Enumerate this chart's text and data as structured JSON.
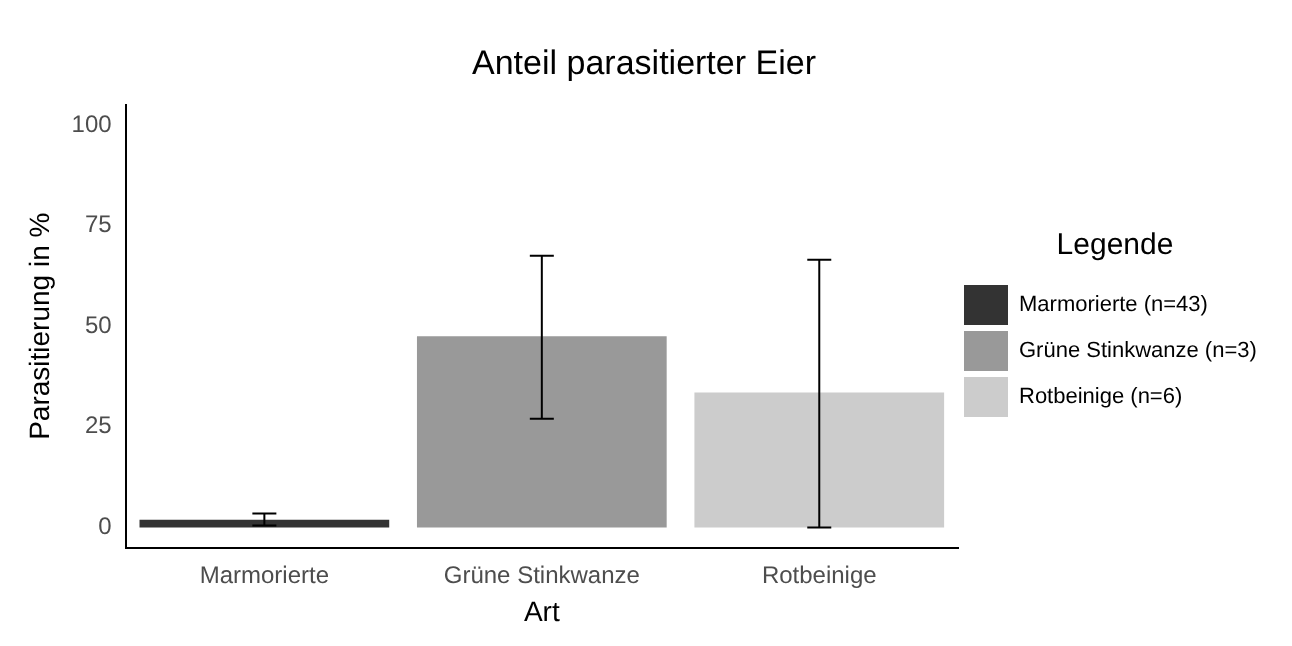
{
  "chart_data": {
    "type": "bar",
    "title": "Anteil parasitierter Eier",
    "xlabel": "Art",
    "ylabel": "Parasitierung in %",
    "legend_title": "Legende",
    "categories": [
      "Marmorierte",
      "Grüne Stinkwanze",
      "Rotbeinige"
    ],
    "series": [
      {
        "name": "Marmorierte (n=43)",
        "color": "#333333",
        "values": [
          1.9,
          null,
          null
        ],
        "errors": [
          [
            0.5,
            3.5
          ],
          null,
          null
        ]
      },
      {
        "name": "Grüne Stinkwanze (n=3)",
        "color": "#999999",
        "values": [
          null,
          47.5,
          null
        ],
        "errors": [
          null,
          [
            27,
            67.5
          ],
          null
        ]
      },
      {
        "name": "Rotbeinige (n=6)",
        "color": "#cccccc",
        "values": [
          null,
          null,
          33.5
        ],
        "errors": [
          null,
          null,
          [
            0,
            66.5
          ]
        ]
      }
    ],
    "ylim": [
      -5,
      105
    ],
    "yticks": [
      0,
      25,
      50,
      75,
      100
    ],
    "grid": false,
    "legend": "right"
  }
}
